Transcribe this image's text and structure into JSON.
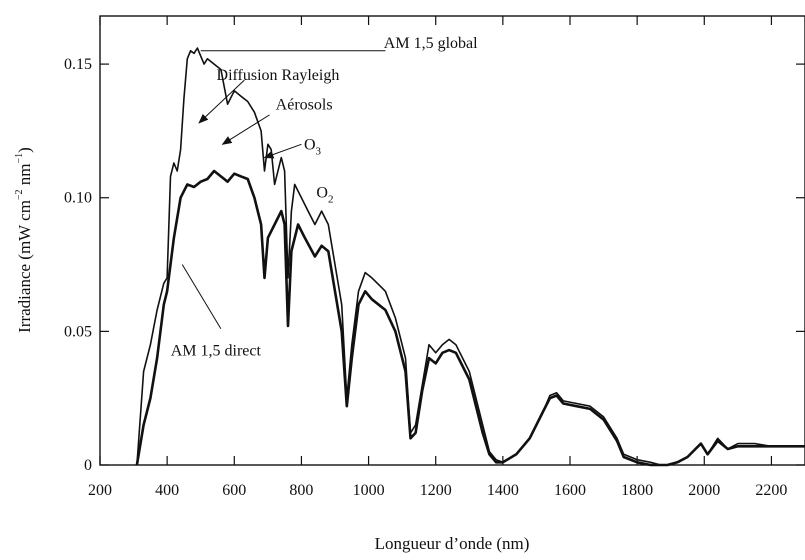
{
  "chart_data": {
    "type": "line",
    "xlabel": "Longueur d’onde (nm)",
    "ylabel": {
      "prefix": "Irradiance (mW cm",
      "sup1": "−2",
      "mid": " nm",
      "sup2": "−1",
      "suffix": ")"
    },
    "xlim": [
      200,
      2300
    ],
    "ylim": [
      0,
      0.168
    ],
    "xticks": [
      200,
      400,
      600,
      800,
      1000,
      1200,
      1400,
      1600,
      1800,
      2000,
      2200
    ],
    "yticks": [
      0,
      0.05,
      0.1,
      0.15
    ],
    "ytick_labels": [
      "0",
      "0.05",
      "0.10",
      "0.15"
    ],
    "grid": false,
    "series": [
      {
        "key": "global",
        "stroke": "#111111",
        "points": [
          [
            310,
            0
          ],
          [
            330,
            0.035
          ],
          [
            350,
            0.045
          ],
          [
            370,
            0.058
          ],
          [
            390,
            0.068
          ],
          [
            400,
            0.07
          ],
          [
            410,
            0.108
          ],
          [
            420,
            0.113
          ],
          [
            430,
            0.11
          ],
          [
            440,
            0.118
          ],
          [
            450,
            0.137
          ],
          [
            460,
            0.152
          ],
          [
            470,
            0.155
          ],
          [
            480,
            0.154
          ],
          [
            490,
            0.156
          ],
          [
            500,
            0.153
          ],
          [
            510,
            0.15
          ],
          [
            520,
            0.152
          ],
          [
            540,
            0.15
          ],
          [
            560,
            0.148
          ],
          [
            580,
            0.135
          ],
          [
            600,
            0.14
          ],
          [
            620,
            0.138
          ],
          [
            640,
            0.136
          ],
          [
            660,
            0.132
          ],
          [
            680,
            0.125
          ],
          [
            690,
            0.11
          ],
          [
            700,
            0.12
          ],
          [
            710,
            0.118
          ],
          [
            720,
            0.105
          ],
          [
            740,
            0.115
          ],
          [
            750,
            0.11
          ],
          [
            760,
            0.07
          ],
          [
            770,
            0.095
          ],
          [
            780,
            0.105
          ],
          [
            800,
            0.1
          ],
          [
            820,
            0.095
          ],
          [
            840,
            0.09
          ],
          [
            860,
            0.095
          ],
          [
            880,
            0.09
          ],
          [
            900,
            0.075
          ],
          [
            920,
            0.06
          ],
          [
            935,
            0.025
          ],
          [
            950,
            0.045
          ],
          [
            970,
            0.065
          ],
          [
            990,
            0.072
          ],
          [
            1010,
            0.07
          ],
          [
            1050,
            0.065
          ],
          [
            1080,
            0.055
          ],
          [
            1110,
            0.04
          ],
          [
            1125,
            0.012
          ],
          [
            1140,
            0.015
          ],
          [
            1160,
            0.03
          ],
          [
            1180,
            0.045
          ],
          [
            1200,
            0.042
          ],
          [
            1220,
            0.045
          ],
          [
            1240,
            0.047
          ],
          [
            1260,
            0.045
          ],
          [
            1300,
            0.035
          ],
          [
            1340,
            0.015
          ],
          [
            1360,
            0.005
          ],
          [
            1380,
            0.002
          ],
          [
            1400,
            0.001
          ],
          [
            1440,
            0.004
          ],
          [
            1480,
            0.01
          ],
          [
            1520,
            0.02
          ],
          [
            1540,
            0.026
          ],
          [
            1560,
            0.027
          ],
          [
            1580,
            0.024
          ],
          [
            1620,
            0.023
          ],
          [
            1660,
            0.022
          ],
          [
            1700,
            0.018
          ],
          [
            1740,
            0.01
          ],
          [
            1760,
            0.004
          ],
          [
            1800,
            0.002
          ],
          [
            1840,
            0.001
          ],
          [
            1870,
            0
          ],
          [
            1890,
            0
          ],
          [
            1920,
            0.001
          ],
          [
            1950,
            0.003
          ],
          [
            1990,
            0.008
          ],
          [
            2010,
            0.004
          ],
          [
            2040,
            0.01
          ],
          [
            2070,
            0.006
          ],
          [
            2100,
            0.008
          ],
          [
            2150,
            0.008
          ],
          [
            2200,
            0.007
          ],
          [
            2300,
            0.007
          ]
        ]
      },
      {
        "key": "direct",
        "stroke": "#111111",
        "points": [
          [
            310,
            0
          ],
          [
            330,
            0.015
          ],
          [
            350,
            0.025
          ],
          [
            370,
            0.04
          ],
          [
            390,
            0.06
          ],
          [
            400,
            0.065
          ],
          [
            420,
            0.085
          ],
          [
            440,
            0.1
          ],
          [
            460,
            0.105
          ],
          [
            480,
            0.104
          ],
          [
            500,
            0.106
          ],
          [
            520,
            0.107
          ],
          [
            540,
            0.11
          ],
          [
            560,
            0.108
          ],
          [
            580,
            0.106
          ],
          [
            600,
            0.109
          ],
          [
            620,
            0.108
          ],
          [
            640,
            0.107
          ],
          [
            660,
            0.1
          ],
          [
            680,
            0.09
          ],
          [
            690,
            0.07
          ],
          [
            700,
            0.085
          ],
          [
            720,
            0.09
          ],
          [
            740,
            0.095
          ],
          [
            750,
            0.09
          ],
          [
            760,
            0.052
          ],
          [
            770,
            0.08
          ],
          [
            790,
            0.09
          ],
          [
            810,
            0.085
          ],
          [
            840,
            0.078
          ],
          [
            860,
            0.082
          ],
          [
            880,
            0.08
          ],
          [
            900,
            0.065
          ],
          [
            920,
            0.05
          ],
          [
            935,
            0.022
          ],
          [
            950,
            0.04
          ],
          [
            970,
            0.06
          ],
          [
            990,
            0.065
          ],
          [
            1010,
            0.062
          ],
          [
            1050,
            0.058
          ],
          [
            1080,
            0.05
          ],
          [
            1110,
            0.035
          ],
          [
            1125,
            0.01
          ],
          [
            1140,
            0.012
          ],
          [
            1160,
            0.028
          ],
          [
            1180,
            0.04
          ],
          [
            1200,
            0.038
          ],
          [
            1220,
            0.042
          ],
          [
            1240,
            0.043
          ],
          [
            1260,
            0.042
          ],
          [
            1300,
            0.032
          ],
          [
            1340,
            0.012
          ],
          [
            1360,
            0.004
          ],
          [
            1380,
            0.001
          ],
          [
            1400,
            0.001
          ],
          [
            1440,
            0.004
          ],
          [
            1480,
            0.01
          ],
          [
            1520,
            0.02
          ],
          [
            1540,
            0.025
          ],
          [
            1560,
            0.026
          ],
          [
            1580,
            0.023
          ],
          [
            1620,
            0.022
          ],
          [
            1660,
            0.021
          ],
          [
            1700,
            0.017
          ],
          [
            1740,
            0.009
          ],
          [
            1760,
            0.003
          ],
          [
            1800,
            0.001
          ],
          [
            1840,
            0
          ],
          [
            1870,
            0
          ],
          [
            1890,
            0
          ],
          [
            1920,
            0.001
          ],
          [
            1950,
            0.003
          ],
          [
            1990,
            0.008
          ],
          [
            2010,
            0.004
          ],
          [
            2040,
            0.009
          ],
          [
            2070,
            0.006
          ],
          [
            2100,
            0.007
          ],
          [
            2150,
            0.007
          ],
          [
            2200,
            0.007
          ],
          [
            2300,
            0.007
          ]
        ]
      }
    ],
    "annotations": [
      {
        "key": "global",
        "text": "AM 1,5 global",
        "sub": "",
        "arrow": false,
        "label_at": [
          1185,
          0.156
        ],
        "line_from": [
          1050,
          0.155
        ],
        "line_to": [
          500,
          0.155
        ]
      },
      {
        "key": "rayleigh",
        "text": "Diffusion Rayleigh",
        "sub": "",
        "arrow": true,
        "label_at": [
          730,
          0.144
        ],
        "line_from": [
          630,
          0.144
        ],
        "line_to": [
          495,
          0.128
        ]
      },
      {
        "key": "aerosols",
        "text": "Aérosols",
        "sub": "",
        "arrow": true,
        "label_at": [
          808,
          0.133
        ],
        "line_from": [
          705,
          0.131
        ],
        "line_to": [
          565,
          0.12
        ]
      },
      {
        "key": "o3",
        "text": "O",
        "sub": "3",
        "arrow": true,
        "label_at": [
          833,
          0.118
        ],
        "line_from": [
          800,
          0.12
        ],
        "line_to": [
          690,
          0.115
        ]
      },
      {
        "key": "o2",
        "text": "O",
        "sub": "2",
        "arrow": false,
        "label_at": [
          870,
          0.1
        ],
        "line_from": [],
        "line_to": []
      },
      {
        "key": "direct",
        "text": "AM 1,5 direct",
        "sub": "",
        "arrow": false,
        "label_at": [
          545,
          0.041
        ],
        "line_from": [
          560,
          0.051
        ],
        "line_to": [
          445,
          0.075
        ]
      }
    ]
  }
}
